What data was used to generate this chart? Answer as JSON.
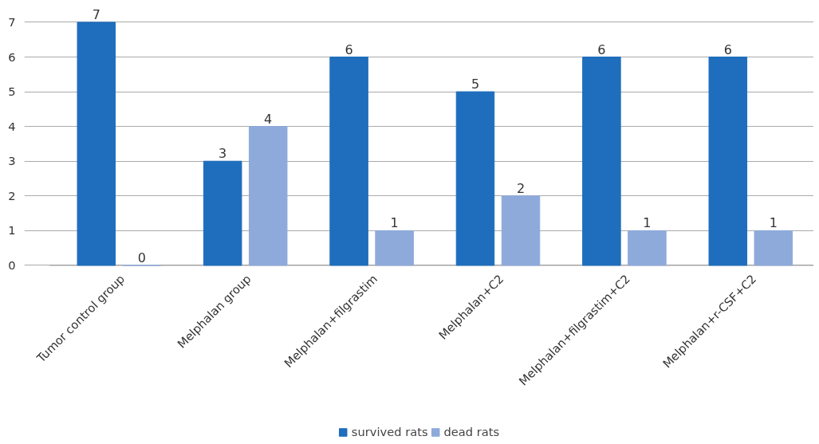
{
  "chart_data": {
    "type": "bar",
    "categories": [
      "Tumor control group",
      "Melphalan group",
      "Melphalan+filgrastim",
      "Melphalan+C2",
      "Melphalan+filgrastim+C2",
      "Melphalan+r-CSF+C2"
    ],
    "series": [
      {
        "name": "survived rats",
        "color": "#1f6ebd",
        "values": [
          7,
          3,
          6,
          5,
          6,
          6
        ]
      },
      {
        "name": "dead rats",
        "color": "#8eaadb",
        "values": [
          0,
          4,
          1,
          2,
          1,
          1
        ]
      }
    ],
    "ylim": [
      0,
      7
    ],
    "yticks": [
      0,
      1,
      2,
      3,
      4,
      5,
      6,
      7
    ],
    "grid": "y",
    "legend": "bottom",
    "data_labels": true
  }
}
